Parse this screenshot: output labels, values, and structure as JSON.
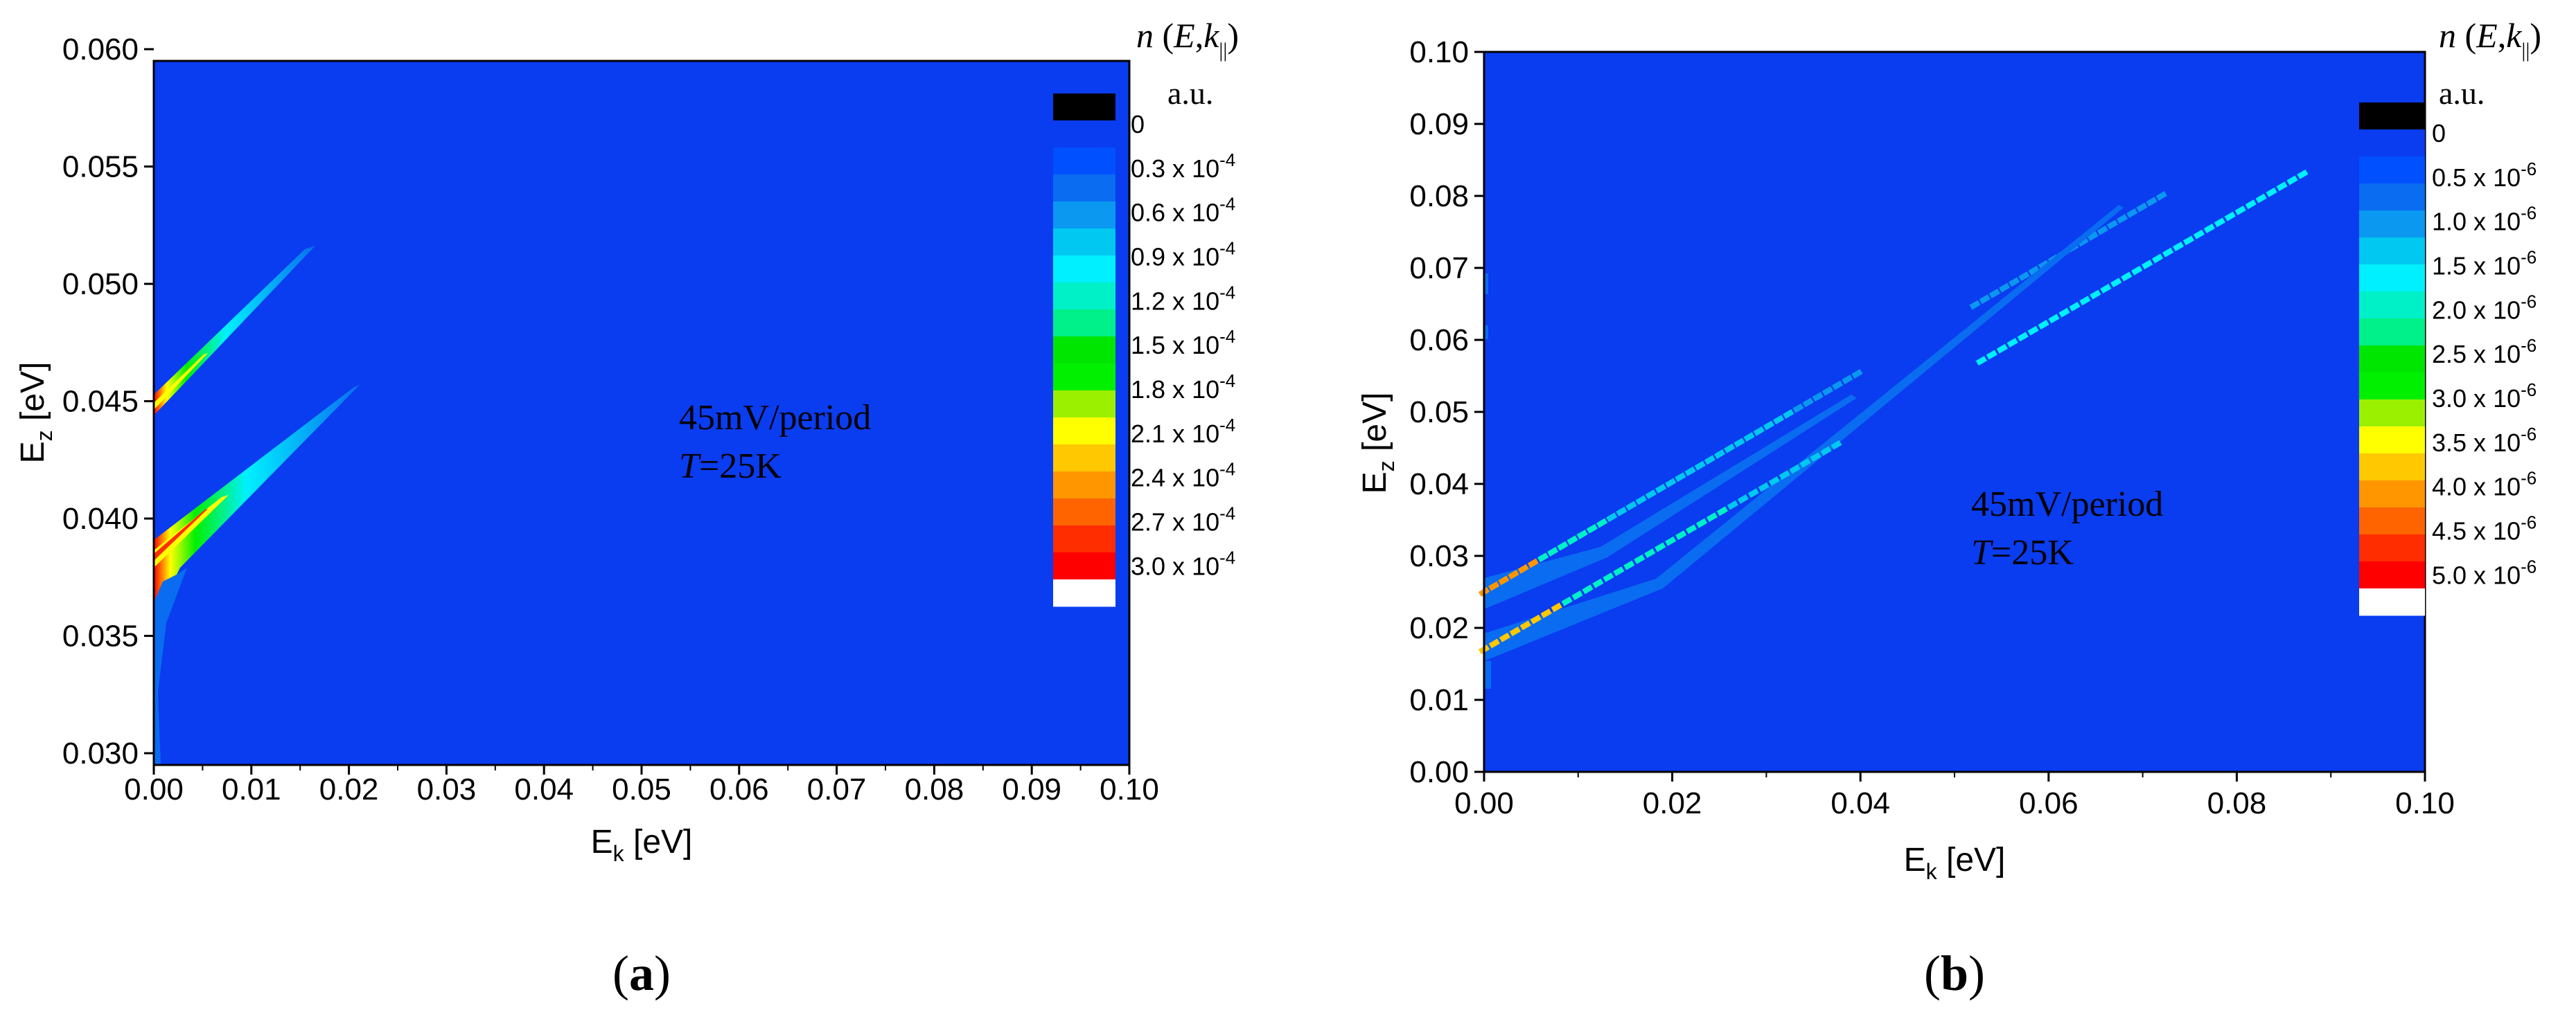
{
  "chart_data": [
    {
      "type": "heatmap",
      "panel_label": "a",
      "xlabel": "E",
      "xlabel_sub": "k",
      "xlabel_unit": "[eV]",
      "ylabel": "E",
      "ylabel_sub": "z",
      "ylabel_unit": "[eV]",
      "xlim": [
        0.0,
        0.1
      ],
      "ylim": [
        0.0295,
        0.0595
      ],
      "xticks": [
        "0.00",
        "0.01",
        "0.02",
        "0.03",
        "0.04",
        "0.05",
        "0.06",
        "0.07",
        "0.08",
        "0.09",
        "0.10"
      ],
      "yticks": [
        "0.030",
        "0.035",
        "0.040",
        "0.045",
        "0.050",
        "0.055",
        "0.060"
      ],
      "annotation": [
        "45mV/period",
        "T=25K"
      ],
      "colorbar_title": "n (E,k||)",
      "colorbar_unit": "a.u.",
      "colorbar_labels": [
        "0",
        "0.3 x 10-4",
        "0.6 x 10-4",
        "0.9 x 10-4",
        "1.2 x 10-4",
        "1.5 x 10-4",
        "1.8 x 10-4",
        "2.1 x 10-4",
        "2.4 x 10-4",
        "2.7 x 10-4",
        "3.0 x 10-4"
      ],
      "bands": [
        {
          "ez_at_zero": 0.044,
          "ez_end": 0.051,
          "ek_end": 0.017,
          "peak": "3.0e-4"
        },
        {
          "ez_at_zero": 0.0365,
          "ez_end": 0.0455,
          "ek_end": 0.022,
          "peak": "3.0e-4"
        }
      ]
    },
    {
      "type": "heatmap",
      "panel_label": "b",
      "xlabel": "E",
      "xlabel_sub": "k",
      "xlabel_unit": "[eV]",
      "ylabel": "E",
      "ylabel_sub": "z",
      "ylabel_unit": "[eV]",
      "xlim": [
        0.0,
        0.1
      ],
      "ylim": [
        0.0,
        0.1
      ],
      "xticks": [
        "0.00",
        "0.02",
        "0.04",
        "0.06",
        "0.08",
        "0.10"
      ],
      "yticks": [
        "0.00",
        "0.01",
        "0.02",
        "0.03",
        "0.04",
        "0.05",
        "0.06",
        "0.07",
        "0.08",
        "0.09",
        "0.10"
      ],
      "annotation": [
        "45mV/period",
        "T=25K"
      ],
      "colorbar_title": "n (E,k||)",
      "colorbar_unit": "a.u.",
      "colorbar_labels": [
        "0",
        "0.5 x 10-6",
        "1.0 x 10-6",
        "1.5 x 10-6",
        "2.0 x 10-6",
        "2.5 x 10-6",
        "3.0 x 10-6",
        "3.5 x 10-6",
        "4.0 x 10-6",
        "4.5 x 10-6",
        "5.0 x 10-6"
      ],
      "bands": [
        {
          "ez_at_zero": 0.025,
          "ez_end": 0.08,
          "ek_end": 0.072,
          "peak": "5.0e-6"
        },
        {
          "ez_at_zero": 0.017,
          "ez_end": 0.083,
          "ek_end": 0.087,
          "peak": "5.0e-6"
        }
      ]
    }
  ],
  "colors": {
    "background": "#0a3cf0",
    "colormap": [
      "#000000",
      "#0a3cf0",
      "#0050ff",
      "#0a6cf0",
      "#0a98f0",
      "#00c8f0",
      "#00f0ff",
      "#00f0c8",
      "#00f08a",
      "#00e600",
      "#00f000",
      "#9bf000",
      "#ffff00",
      "#ffc800",
      "#ff9600",
      "#ff6400",
      "#ff2d00",
      "#ff0000",
      "#ffffff"
    ]
  }
}
